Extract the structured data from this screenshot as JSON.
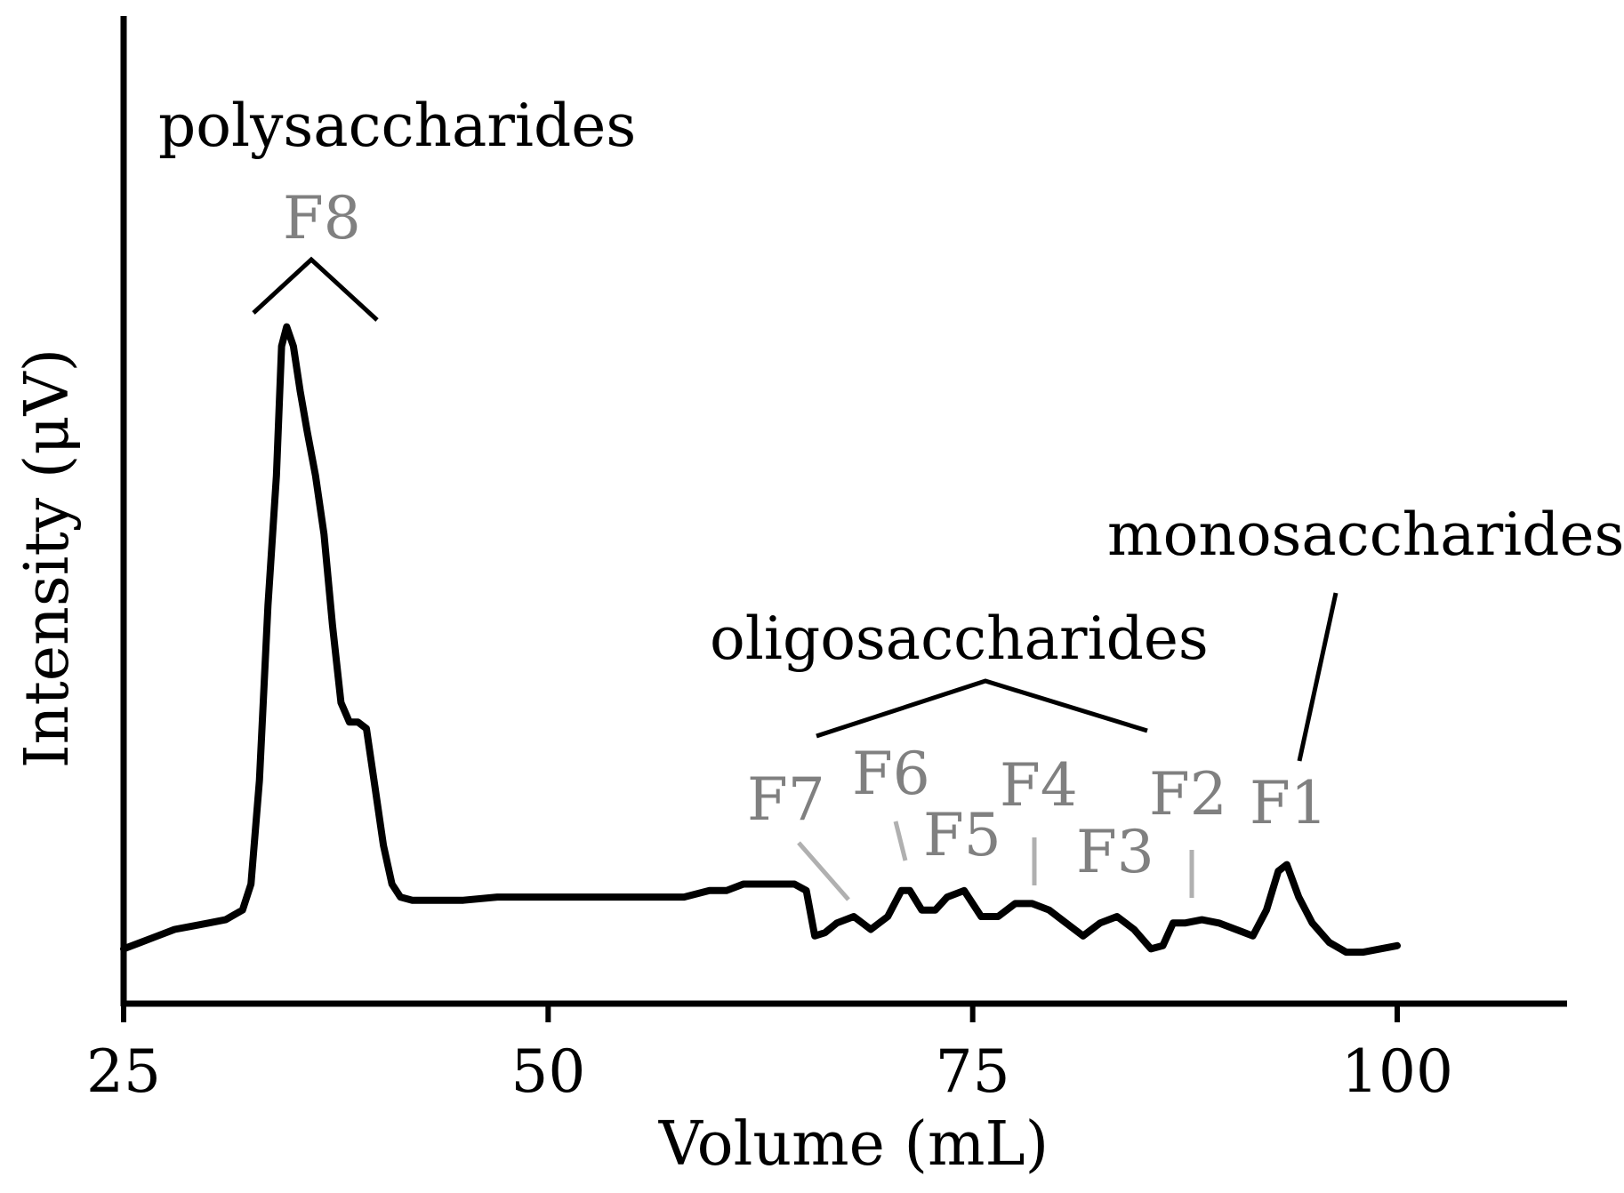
{
  "chart_data": {
    "type": "line",
    "xlabel": "Volume (mL)",
    "ylabel": "Intensity (μV)",
    "xlim": [
      25,
      110
    ],
    "x_ticks": [
      25,
      50,
      75,
      100
    ],
    "x_tick_labels": [
      "25",
      "50",
      "75",
      "100"
    ],
    "grid": false,
    "legend": "none",
    "colors": {
      "trace": "#000000",
      "peak_label": "#808080",
      "peak_leader": "#b0b0b0"
    },
    "series": [
      {
        "x": [
          25,
          26,
          27,
          28,
          29,
          30,
          31,
          32,
          32.5,
          33,
          33.5,
          34,
          34.3,
          34.6,
          35,
          35.4,
          35.8,
          36.3,
          36.8,
          37.3,
          37.8,
          38.3,
          38.8,
          39.3,
          39.8,
          40.3,
          40.8,
          41.3,
          42,
          43,
          45,
          47,
          50,
          55,
          58,
          59.5,
          60.5,
          61.5,
          62.5,
          63.5,
          64.5,
          65.2,
          65.7,
          66.3,
          67,
          68,
          69,
          70,
          70.8,
          71.3,
          72,
          72.8,
          73.5,
          74.5,
          75.5,
          76.5,
          77.5,
          78.5,
          79.5,
          80.5,
          81.5,
          82.5,
          83.5,
          84.5,
          85.5,
          86.2,
          86.8,
          87.5,
          88.5,
          89.5,
          90.5,
          91.5,
          92.3,
          93,
          93.5,
          94.2,
          95,
          96,
          97,
          98,
          99,
          100
        ],
        "y": [
          2,
          3,
          4,
          5,
          5.5,
          6,
          6.5,
          8,
          12,
          28,
          55,
          75,
          95,
          98,
          95,
          88,
          82,
          75,
          66,
          52,
          40,
          37,
          37,
          36,
          27,
          18,
          12,
          10,
          9.5,
          9.5,
          9.5,
          10,
          10,
          10,
          10,
          11,
          11,
          12,
          12,
          12,
          12,
          11,
          4,
          4.5,
          6,
          7,
          5,
          7,
          11,
          11,
          8,
          8,
          10,
          11,
          7,
          7,
          9,
          9,
          8,
          6,
          4,
          6,
          7,
          5,
          2,
          2.5,
          6,
          6,
          6.5,
          6,
          5,
          4,
          8,
          14,
          15,
          10,
          6,
          3,
          1.5,
          1.5,
          2,
          2.5
        ]
      }
    ],
    "annotations": [
      {
        "text": "polysaccharides",
        "role": "group"
      },
      {
        "text": "oligosaccharides",
        "role": "group"
      },
      {
        "text": "monosaccharides",
        "role": "group"
      },
      {
        "text": "F8",
        "role": "peak",
        "x": 35
      },
      {
        "text": "F7",
        "role": "peak",
        "x": 67.5
      },
      {
        "text": "F6",
        "role": "peak",
        "x": 71
      },
      {
        "text": "F5",
        "role": "peak",
        "x": 74.5
      },
      {
        "text": "F4",
        "role": "peak",
        "x": 78.5
      },
      {
        "text": "F3",
        "role": "peak",
        "x": 83.5
      },
      {
        "text": "F2",
        "role": "peak",
        "x": 88
      },
      {
        "text": "F1",
        "role": "peak",
        "x": 93
      }
    ]
  }
}
